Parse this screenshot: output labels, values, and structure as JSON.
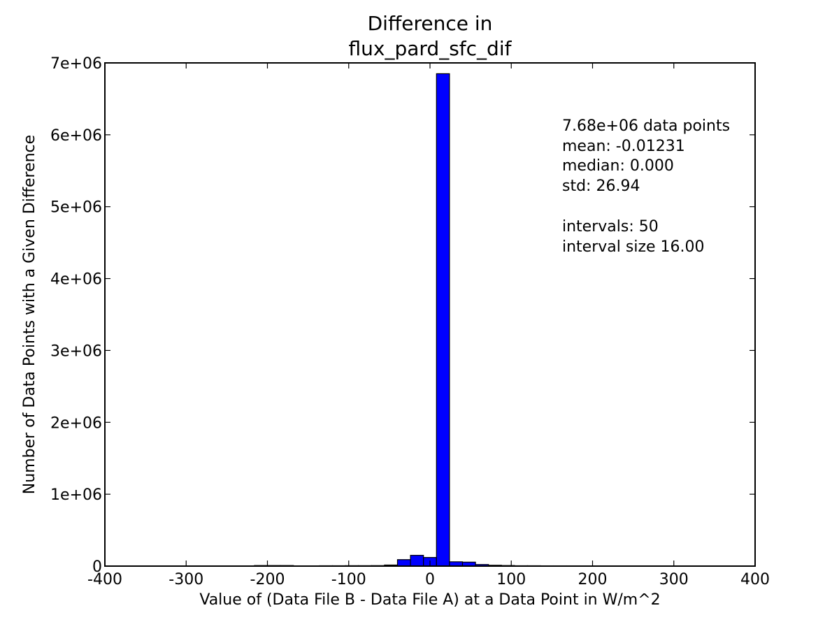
{
  "chart_data": {
    "type": "bar",
    "title_lines": [
      "Difference in",
      "flux_pard_sfc_dif"
    ],
    "xlabel": "Value of (Data File B - Data File A) at a Data Point in W/m^2",
    "ylabel": "Number of Data Points with a Given Difference",
    "xlim": [
      -400,
      400
    ],
    "ylim": [
      0,
      7000000
    ],
    "x_ticks": [
      -400,
      -300,
      -200,
      -100,
      0,
      100,
      200,
      300,
      400
    ],
    "x_tick_labels": [
      "-400",
      "-300",
      "-200",
      "-100",
      "0",
      "100",
      "200",
      "300",
      "400"
    ],
    "y_ticks": [
      0,
      1000000,
      2000000,
      3000000,
      4000000,
      5000000,
      6000000,
      7000000
    ],
    "y_tick_labels": [
      "0",
      "1e+06",
      "2e+06",
      "3e+06",
      "4e+06",
      "5e+06",
      "6e+06",
      "7e+06"
    ],
    "bin_width": 16,
    "bins": [
      {
        "start": -216,
        "value": 8000
      },
      {
        "start": -200,
        "value": 8000
      },
      {
        "start": -184,
        "value": 8000
      },
      {
        "start": -136,
        "value": 5000
      },
      {
        "start": -120,
        "value": 5000
      },
      {
        "start": -104,
        "value": 6000
      },
      {
        "start": -88,
        "value": 6000
      },
      {
        "start": -72,
        "value": 7000
      },
      {
        "start": -56,
        "value": 15000
      },
      {
        "start": -40,
        "value": 90000
      },
      {
        "start": -24,
        "value": 150000
      },
      {
        "start": -8,
        "value": 120000
      },
      {
        "start": 8,
        "value": 6850000
      },
      {
        "start": 24,
        "value": 60000
      },
      {
        "start": 40,
        "value": 55000
      },
      {
        "start": 56,
        "value": 22000
      },
      {
        "start": 72,
        "value": 12000
      },
      {
        "start": 88,
        "value": 8000
      },
      {
        "start": 104,
        "value": 5000
      },
      {
        "start": 120,
        "value": 5000
      },
      {
        "start": 136,
        "value": 4000
      },
      {
        "start": 152,
        "value": 4000
      },
      {
        "start": 168,
        "value": 4000
      },
      {
        "start": 184,
        "value": 3000
      },
      {
        "start": 200,
        "value": 3000
      }
    ],
    "bar_color": "#0000ff",
    "grid": false,
    "annotation_lines": [
      "7.68e+06 data points",
      "mean: -0.01231",
      "median: 0.000",
      "std: 26.94",
      "",
      "intervals: 50",
      "interval size 16.00"
    ]
  }
}
